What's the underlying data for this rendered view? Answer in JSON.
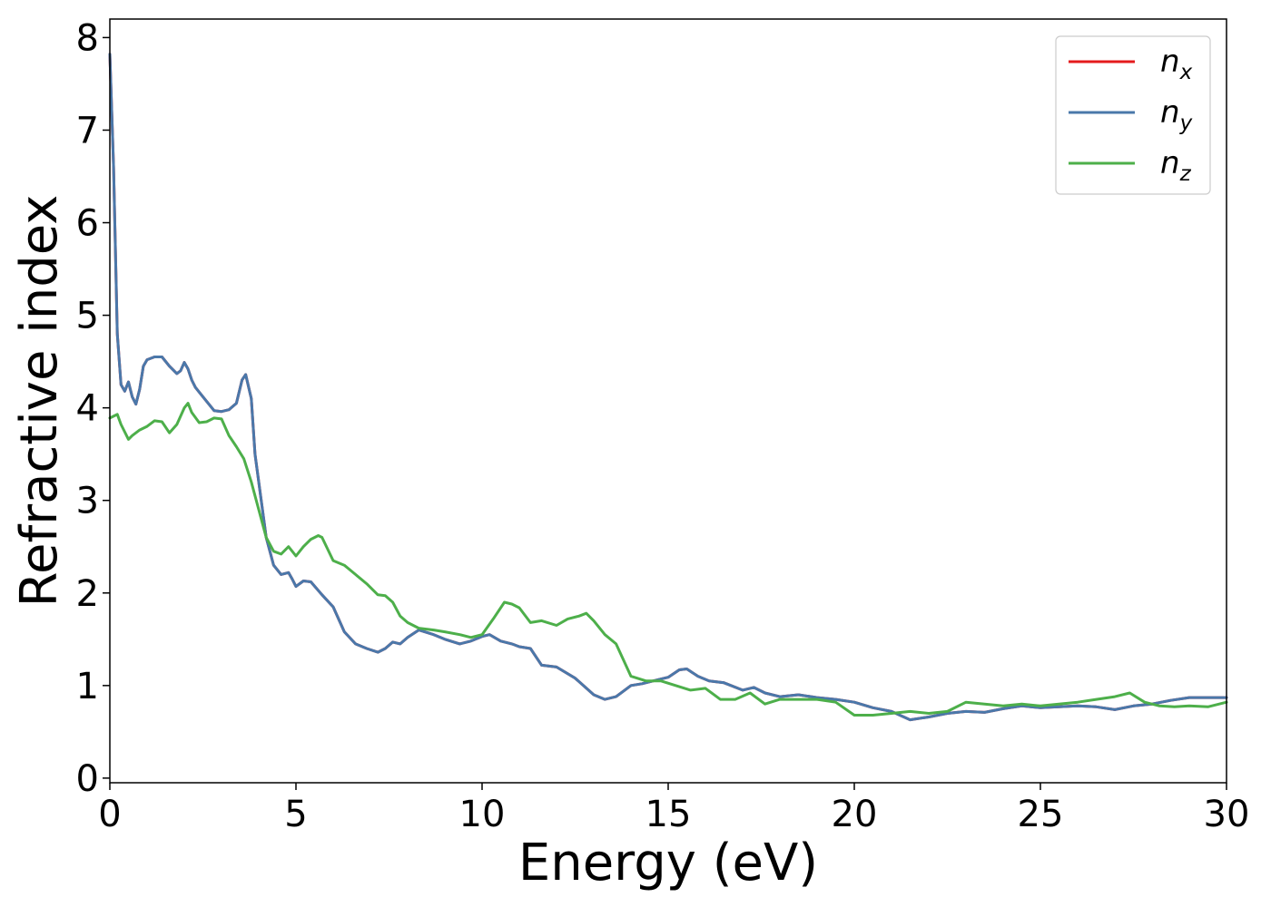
{
  "chart_data": {
    "type": "line",
    "title": "",
    "xlabel": "Energy (eV)",
    "ylabel": "Refractive index",
    "xlim": [
      0,
      30
    ],
    "ylim": [
      -0.05,
      8.2
    ],
    "xticks": [
      0,
      5,
      10,
      15,
      20,
      25,
      30
    ],
    "yticks": [
      0,
      1,
      2,
      3,
      4,
      5,
      6,
      7,
      8
    ],
    "grid": false,
    "legend_position": "top-right",
    "series": [
      {
        "name": "n",
        "subscript": "x",
        "color": "#e41a1c",
        "x": [
          0,
          0.1,
          0.2,
          0.3,
          0.4,
          0.5,
          0.6,
          0.7,
          0.8,
          0.9,
          1.0,
          1.2,
          1.4,
          1.6,
          1.8,
          1.9,
          2.0,
          2.1,
          2.2,
          2.3,
          2.5,
          2.8,
          3.0,
          3.2,
          3.4,
          3.55,
          3.65,
          3.8,
          3.9,
          4.0,
          4.2,
          4.4,
          4.6,
          4.8,
          4.9,
          5.0,
          5.2,
          5.4,
          5.7,
          6.0,
          6.3,
          6.6,
          6.9,
          7.2,
          7.4,
          7.6,
          7.8,
          8.0,
          8.3,
          8.7,
          9.0,
          9.4,
          9.7,
          10.0,
          10.2,
          10.5,
          10.8,
          11.0,
          11.3,
          11.6,
          12.0,
          12.5,
          13.0,
          13.3,
          13.6,
          14.0,
          14.3,
          14.6,
          15.0,
          15.3,
          15.5,
          15.8,
          16.1,
          16.5,
          17.0,
          17.3,
          17.6,
          18.0,
          18.5,
          19.0,
          19.5,
          20.0,
          20.5,
          21.0,
          21.5,
          22.0,
          22.5,
          23.0,
          23.5,
          24.0,
          24.5,
          25.0,
          25.5,
          26.0,
          26.5,
          27.0,
          27.5,
          28.0,
          28.5,
          29.0,
          29.5,
          30.0
        ],
        "y": [
          7.82,
          6.6,
          4.8,
          4.25,
          4.18,
          4.28,
          4.12,
          4.04,
          4.2,
          4.45,
          4.52,
          4.55,
          4.55,
          4.45,
          4.37,
          4.4,
          4.49,
          4.42,
          4.3,
          4.22,
          4.12,
          3.97,
          3.96,
          3.98,
          4.05,
          4.3,
          4.36,
          4.1,
          3.5,
          3.2,
          2.6,
          2.3,
          2.2,
          2.22,
          2.15,
          2.07,
          2.13,
          2.12,
          1.98,
          1.85,
          1.58,
          1.45,
          1.4,
          1.36,
          1.4,
          1.47,
          1.45,
          1.52,
          1.6,
          1.55,
          1.5,
          1.45,
          1.48,
          1.53,
          1.55,
          1.48,
          1.45,
          1.42,
          1.4,
          1.22,
          1.2,
          1.08,
          0.9,
          0.85,
          0.88,
          1.0,
          1.02,
          1.05,
          1.09,
          1.17,
          1.18,
          1.1,
          1.05,
          1.03,
          0.95,
          0.98,
          0.92,
          0.88,
          0.9,
          0.87,
          0.85,
          0.82,
          0.76,
          0.72,
          0.63,
          0.66,
          0.7,
          0.72,
          0.71,
          0.75,
          0.78,
          0.76,
          0.77,
          0.78,
          0.77,
          0.74,
          0.78,
          0.8,
          0.84,
          0.87,
          0.87,
          0.87
        ]
      },
      {
        "name": "n",
        "subscript": "y",
        "color": "#4a78aa",
        "x": [
          0,
          0.1,
          0.2,
          0.3,
          0.4,
          0.5,
          0.6,
          0.7,
          0.8,
          0.9,
          1.0,
          1.2,
          1.4,
          1.6,
          1.8,
          1.9,
          2.0,
          2.1,
          2.2,
          2.3,
          2.5,
          2.8,
          3.0,
          3.2,
          3.4,
          3.55,
          3.65,
          3.8,
          3.9,
          4.0,
          4.2,
          4.4,
          4.6,
          4.8,
          4.9,
          5.0,
          5.2,
          5.4,
          5.7,
          6.0,
          6.3,
          6.6,
          6.9,
          7.2,
          7.4,
          7.6,
          7.8,
          8.0,
          8.3,
          8.7,
          9.0,
          9.4,
          9.7,
          10.0,
          10.2,
          10.5,
          10.8,
          11.0,
          11.3,
          11.6,
          12.0,
          12.5,
          13.0,
          13.3,
          13.6,
          14.0,
          14.3,
          14.6,
          15.0,
          15.3,
          15.5,
          15.8,
          16.1,
          16.5,
          17.0,
          17.3,
          17.6,
          18.0,
          18.5,
          19.0,
          19.5,
          20.0,
          20.5,
          21.0,
          21.5,
          22.0,
          22.5,
          23.0,
          23.5,
          24.0,
          24.5,
          25.0,
          25.5,
          26.0,
          26.5,
          27.0,
          27.5,
          28.0,
          28.5,
          29.0,
          29.5,
          30.0
        ],
        "y": [
          7.82,
          6.6,
          4.8,
          4.25,
          4.18,
          4.28,
          4.12,
          4.04,
          4.2,
          4.45,
          4.52,
          4.55,
          4.55,
          4.45,
          4.37,
          4.4,
          4.49,
          4.42,
          4.3,
          4.22,
          4.12,
          3.97,
          3.96,
          3.98,
          4.05,
          4.3,
          4.36,
          4.1,
          3.5,
          3.2,
          2.6,
          2.3,
          2.2,
          2.22,
          2.15,
          2.07,
          2.13,
          2.12,
          1.98,
          1.85,
          1.58,
          1.45,
          1.4,
          1.36,
          1.4,
          1.47,
          1.45,
          1.52,
          1.6,
          1.55,
          1.5,
          1.45,
          1.48,
          1.53,
          1.55,
          1.48,
          1.45,
          1.42,
          1.4,
          1.22,
          1.2,
          1.08,
          0.9,
          0.85,
          0.88,
          1.0,
          1.02,
          1.05,
          1.09,
          1.17,
          1.18,
          1.1,
          1.05,
          1.03,
          0.95,
          0.98,
          0.92,
          0.88,
          0.9,
          0.87,
          0.85,
          0.82,
          0.76,
          0.72,
          0.63,
          0.66,
          0.7,
          0.72,
          0.71,
          0.75,
          0.78,
          0.76,
          0.77,
          0.78,
          0.77,
          0.74,
          0.78,
          0.8,
          0.84,
          0.87,
          0.87,
          0.87
        ]
      },
      {
        "name": "n",
        "subscript": "z",
        "color": "#4daf4a",
        "x": [
          0,
          0.2,
          0.3,
          0.5,
          0.6,
          0.8,
          1.0,
          1.2,
          1.4,
          1.6,
          1.8,
          2.0,
          2.1,
          2.2,
          2.4,
          2.6,
          2.8,
          3.0,
          3.2,
          3.4,
          3.6,
          3.8,
          4.0,
          4.2,
          4.4,
          4.6,
          4.8,
          4.9,
          5.0,
          5.2,
          5.4,
          5.6,
          5.7,
          6.0,
          6.3,
          6.6,
          6.9,
          7.2,
          7.4,
          7.6,
          7.8,
          8.0,
          8.3,
          8.7,
          9.0,
          9.4,
          9.7,
          10.0,
          10.3,
          10.6,
          10.8,
          11.0,
          11.3,
          11.6,
          12.0,
          12.3,
          12.6,
          12.8,
          13.0,
          13.3,
          13.6,
          14.0,
          14.4,
          14.8,
          15.2,
          15.6,
          16.0,
          16.4,
          16.8,
          17.2,
          17.6,
          18.0,
          18.5,
          19.0,
          19.5,
          20.0,
          20.5,
          21.0,
          21.5,
          22.0,
          22.5,
          23.0,
          23.5,
          24.0,
          24.5,
          25.0,
          25.5,
          26.0,
          26.5,
          27.0,
          27.4,
          27.8,
          28.2,
          28.6,
          29.0,
          29.5,
          30.0
        ],
        "y": [
          3.89,
          3.93,
          3.82,
          3.66,
          3.7,
          3.76,
          3.8,
          3.86,
          3.85,
          3.73,
          3.82,
          4.0,
          4.05,
          3.95,
          3.84,
          3.85,
          3.89,
          3.88,
          3.7,
          3.58,
          3.45,
          3.2,
          2.9,
          2.6,
          2.45,
          2.42,
          2.5,
          2.45,
          2.4,
          2.5,
          2.58,
          2.62,
          2.6,
          2.35,
          2.3,
          2.2,
          2.1,
          1.98,
          1.97,
          1.9,
          1.75,
          1.68,
          1.62,
          1.6,
          1.58,
          1.55,
          1.52,
          1.55,
          1.72,
          1.9,
          1.88,
          1.84,
          1.68,
          1.7,
          1.65,
          1.72,
          1.75,
          1.78,
          1.7,
          1.55,
          1.45,
          1.1,
          1.05,
          1.05,
          1.0,
          0.95,
          0.97,
          0.85,
          0.85,
          0.92,
          0.8,
          0.85,
          0.85,
          0.85,
          0.82,
          0.68,
          0.68,
          0.7,
          0.72,
          0.7,
          0.72,
          0.82,
          0.8,
          0.78,
          0.8,
          0.78,
          0.8,
          0.82,
          0.85,
          0.88,
          0.92,
          0.82,
          0.78,
          0.77,
          0.78,
          0.77,
          0.82
        ]
      }
    ]
  }
}
